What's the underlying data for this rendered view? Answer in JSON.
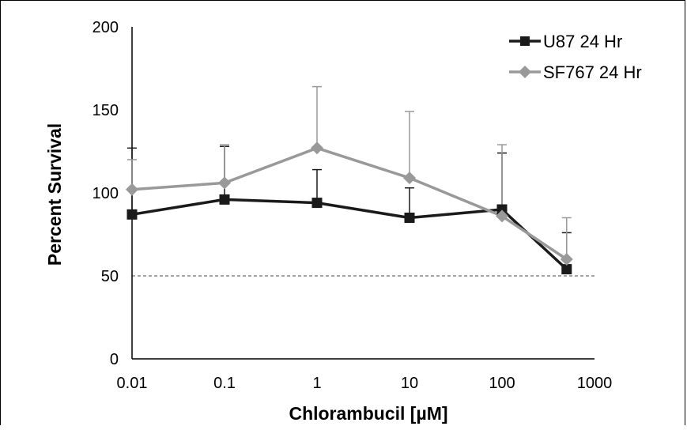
{
  "chart_data": {
    "type": "line",
    "x_scale": "log",
    "x": [
      0.01,
      0.1,
      1,
      10,
      100,
      500
    ],
    "xticks": [
      "0.01",
      "0.1",
      "1",
      "10",
      "100",
      "1000"
    ],
    "xlim": [
      0.01,
      1000
    ],
    "yticks": [
      "0",
      "50",
      "100",
      "150",
      "200"
    ],
    "ylim": [
      0,
      200
    ],
    "xlabel": "Chlorambucil [µM]",
    "ylabel": "Percent Survival",
    "grid": false,
    "legend_position": "top-right",
    "reference_line": {
      "y": 50,
      "style": "dashed"
    },
    "series": [
      {
        "name": "U87 24 Hr",
        "color": "#1a1a1a",
        "marker": "square",
        "values": [
          87,
          96,
          94,
          85,
          90,
          54
        ],
        "error_upper": [
          127,
          128,
          114,
          103,
          124,
          76
        ]
      },
      {
        "name": "SF767 24 Hr",
        "color": "#999999",
        "marker": "diamond",
        "values": [
          102,
          106,
          127,
          109,
          86,
          60
        ],
        "error_upper": [
          120,
          129,
          164,
          149,
          129,
          85
        ]
      }
    ]
  }
}
